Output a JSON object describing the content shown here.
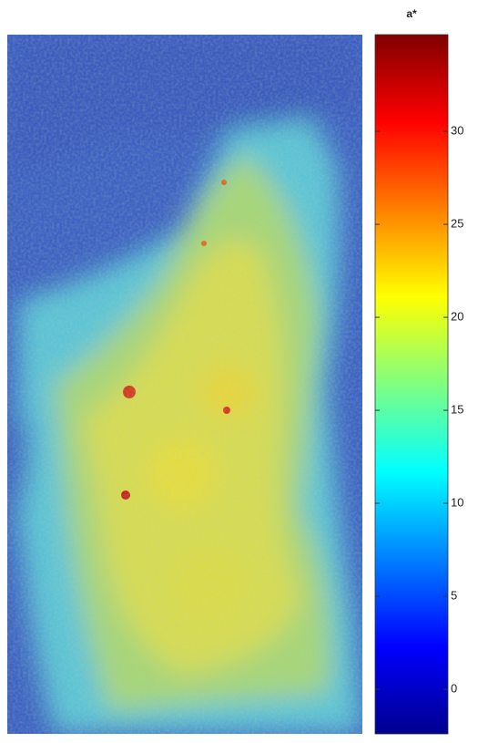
{
  "chart_data": {
    "type": "heatmap",
    "title": "a*",
    "colormap": "jet",
    "clim": [
      -2.4,
      35.2
    ],
    "cticks": [
      0,
      5,
      10,
      15,
      20,
      25,
      30
    ]
  }
}
